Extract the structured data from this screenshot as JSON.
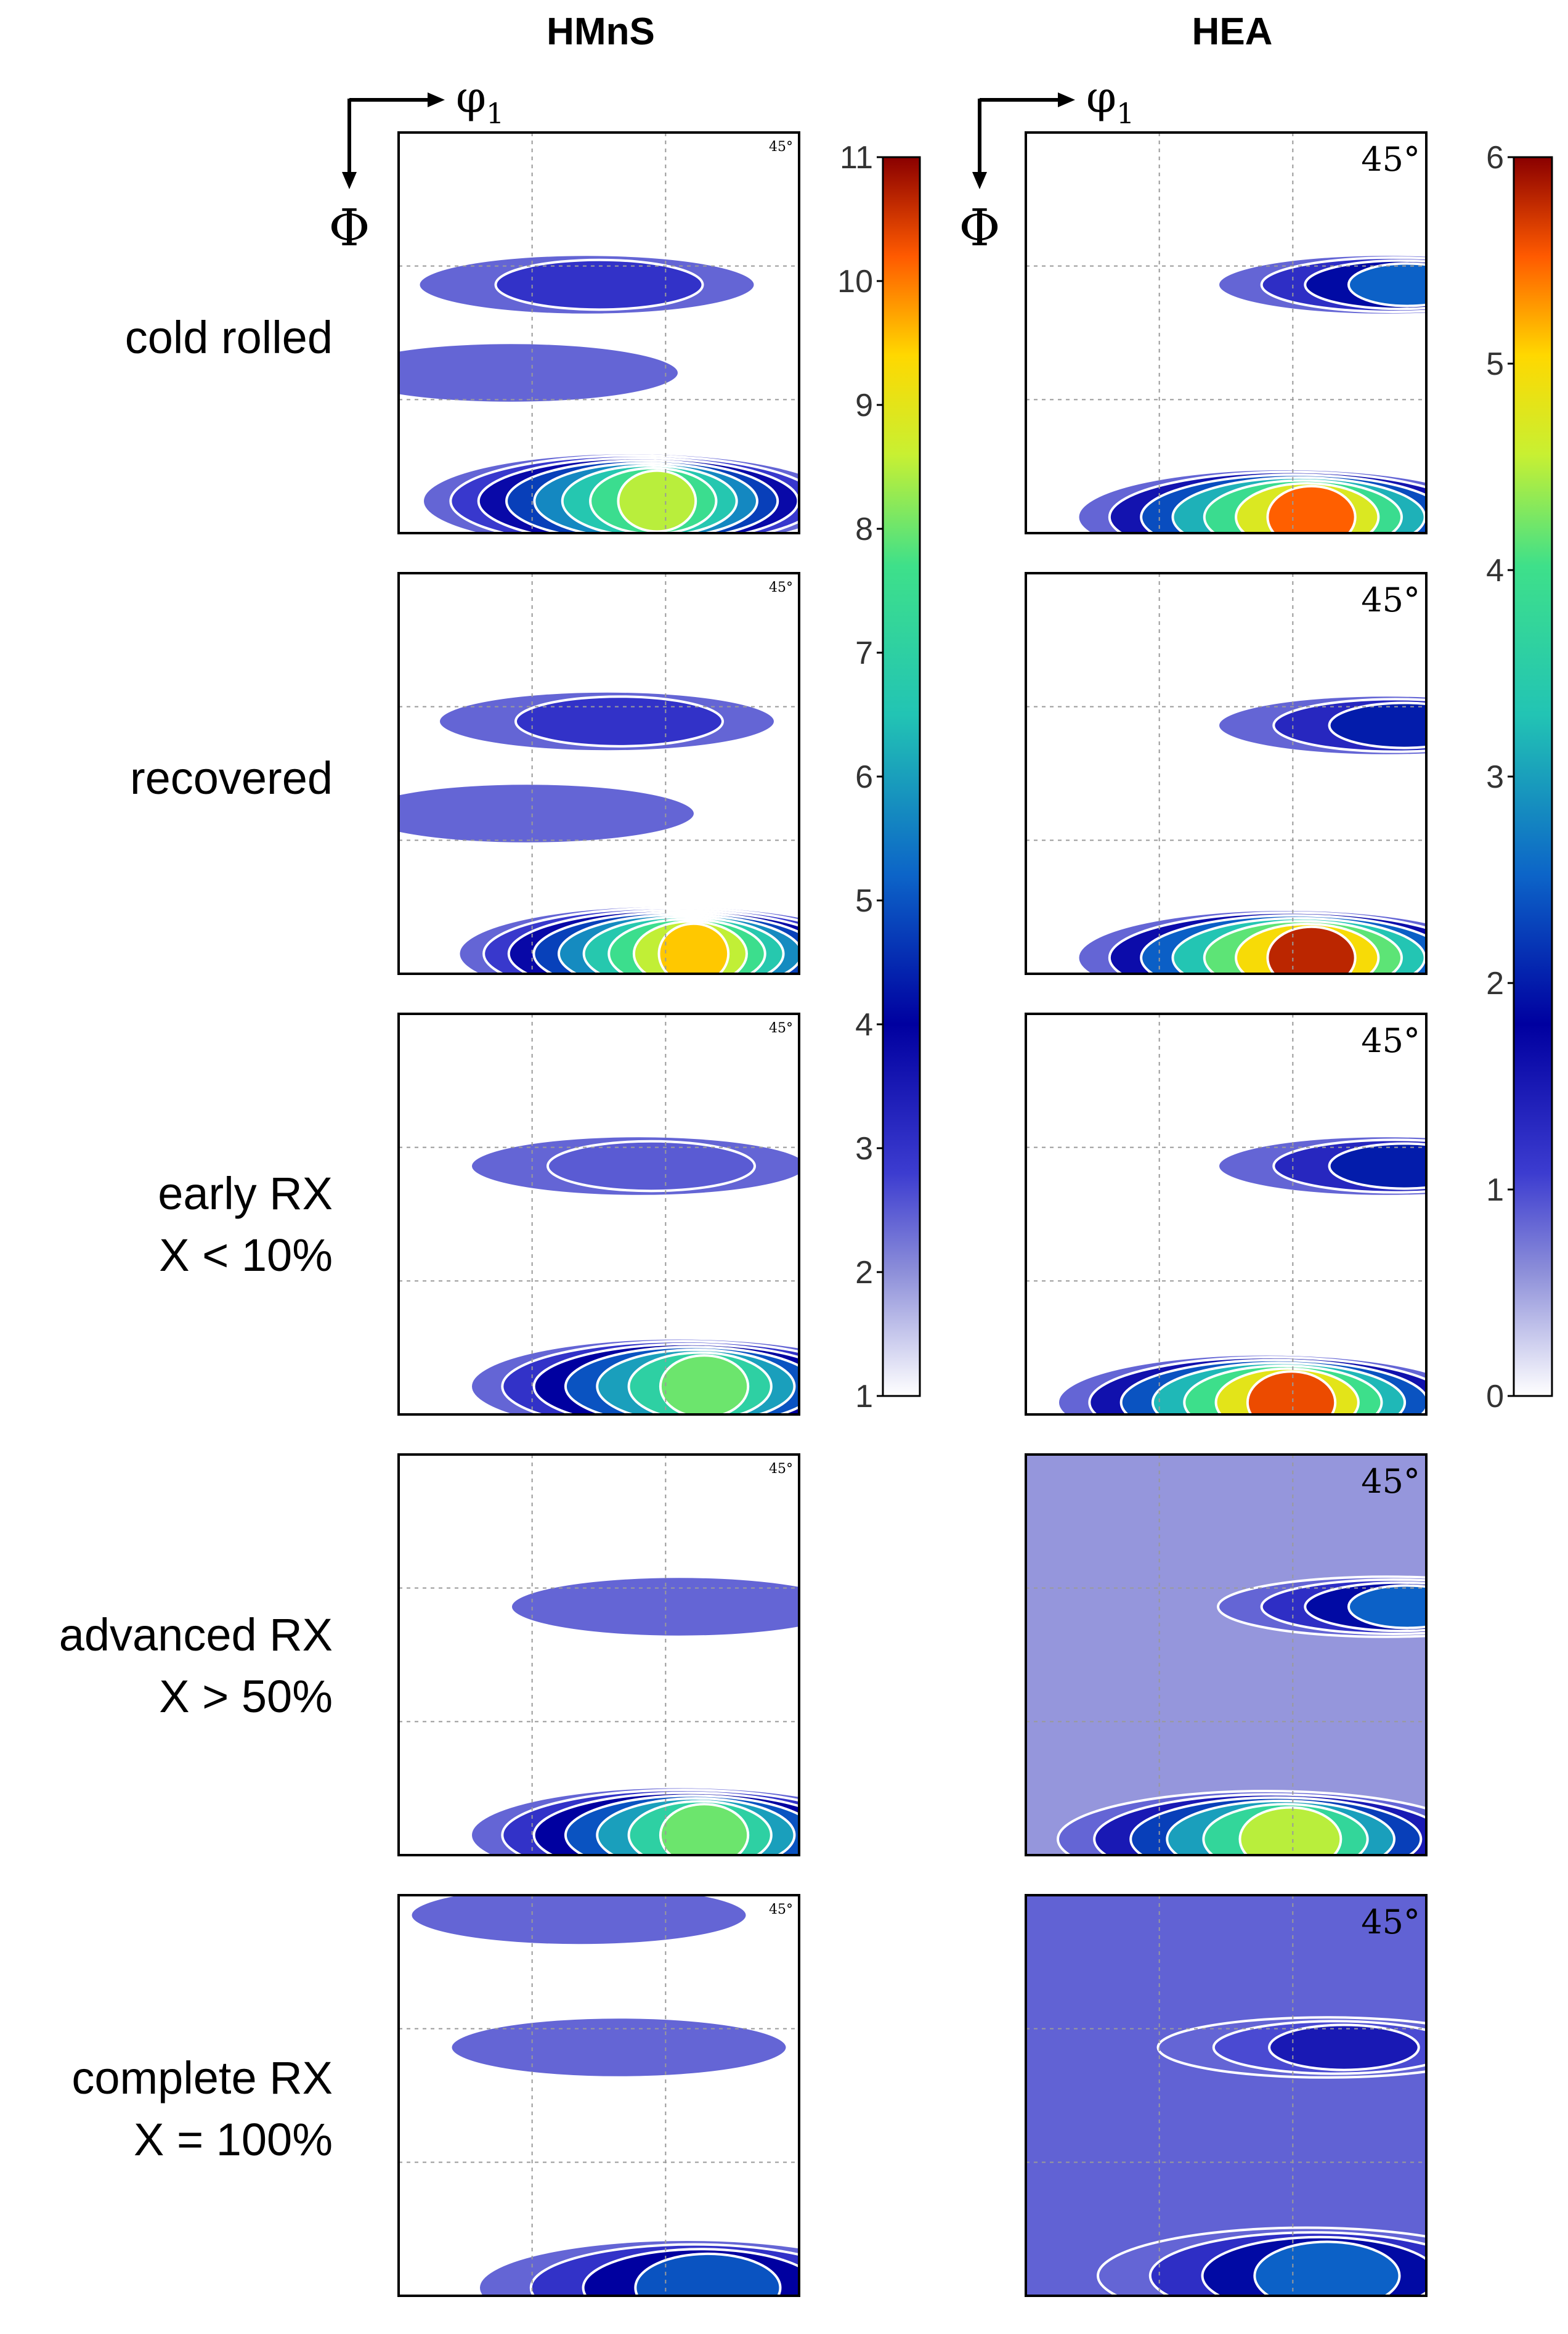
{
  "chart_data": {
    "type": "contour",
    "columns": [
      {
        "title": "HMnS",
        "colorbar": {
          "ticks": [
            1,
            2,
            3,
            4,
            5,
            6,
            7,
            8,
            9,
            10,
            11
          ],
          "range": [
            1,
            11
          ]
        },
        "panels": [
          {
            "label": "cold rolled",
            "max_level": 8.5,
            "lobes": [
              {
                "phi1": 0.47,
                "Phi": 0.38,
                "level": 3.0
              },
              {
                "phi1": 0.58,
                "Phi": 0.92,
                "level": 8.5
              },
              {
                "phi1": 0.28,
                "Phi": 0.6,
                "level": 1.5
              }
            ]
          },
          {
            "label": "recovered",
            "max_level": 9.5,
            "lobes": [
              {
                "phi1": 0.52,
                "Phi": 0.37,
                "level": 3.0
              },
              {
                "phi1": 0.67,
                "Phi": 0.95,
                "level": 9.5
              },
              {
                "phi1": 0.32,
                "Phi": 0.6,
                "level": 1.5
              }
            ]
          },
          {
            "label": "early RX",
            "sublabel": "X < 10%",
            "max_level": 8.0,
            "lobes": [
              {
                "phi1": 0.6,
                "Phi": 0.38,
                "level": 2.5
              },
              {
                "phi1": 0.7,
                "Phi": 0.93,
                "level": 8.0
              }
            ]
          },
          {
            "label": "advanced RX",
            "sublabel": "X > 50%",
            "max_level": 8.0,
            "lobes": [
              {
                "phi1": 0.7,
                "Phi": 0.38,
                "level": 2.0
              },
              {
                "phi1": 0.7,
                "Phi": 0.95,
                "level": 8.0
              }
            ]
          },
          {
            "label": "complete RX",
            "sublabel": "X = 100%",
            "max_level": 5.0,
            "lobes": [
              {
                "phi1": 0.45,
                "Phi": 0.05,
                "level": 2.0
              },
              {
                "phi1": 0.55,
                "Phi": 0.38,
                "level": 2.0
              },
              {
                "phi1": 0.72,
                "Phi": 0.98,
                "level": 5.0
              }
            ]
          }
        ]
      },
      {
        "title": "HEA",
        "colorbar": {
          "ticks": [
            0,
            1,
            2,
            3,
            4,
            5,
            6
          ],
          "range": [
            0,
            6
          ]
        },
        "panels": [
          {
            "label": "cold rolled",
            "max_level": 5.5,
            "lobes": [
              {
                "phi1": 0.9,
                "Phi": 0.38,
                "level": 2.5
              },
              {
                "phi1": 0.65,
                "Phi": 0.96,
                "level": 5.5
              }
            ]
          },
          {
            "label": "recovered",
            "max_level": 5.8,
            "lobes": [
              {
                "phi1": 0.9,
                "Phi": 0.38,
                "level": 2.0
              },
              {
                "phi1": 0.65,
                "Phi": 0.96,
                "level": 5.8
              }
            ]
          },
          {
            "label": "early RX",
            "sublabel": "X < 10%",
            "max_level": 5.6,
            "lobes": [
              {
                "phi1": 0.9,
                "Phi": 0.38,
                "level": 2.0
              },
              {
                "phi1": 0.6,
                "Phi": 0.97,
                "level": 5.6
              }
            ]
          },
          {
            "label": "advanced RX",
            "sublabel": "X > 50%",
            "max_level": 4.5,
            "background_level": 0.2,
            "lobes": [
              {
                "phi1": 0.9,
                "Phi": 0.38,
                "level": 2.5
              },
              {
                "phi1": 0.6,
                "Phi": 0.96,
                "level": 4.5
              }
            ]
          },
          {
            "label": "complete RX",
            "sublabel": "X = 100%",
            "max_level": 2.5,
            "background_level": 0.5,
            "lobes": [
              {
                "phi1": 0.75,
                "Phi": 0.38,
                "level": 1.5
              },
              {
                "phi1": 0.7,
                "Phi": 0.95,
                "level": 2.5
              }
            ]
          }
        ]
      }
    ],
    "axis_labels": {
      "horizontal": "φ",
      "horizontal_sub": "1",
      "vertical": "Φ"
    },
    "panel_corner_label": "45°",
    "grid": true,
    "colormap": "jet"
  }
}
